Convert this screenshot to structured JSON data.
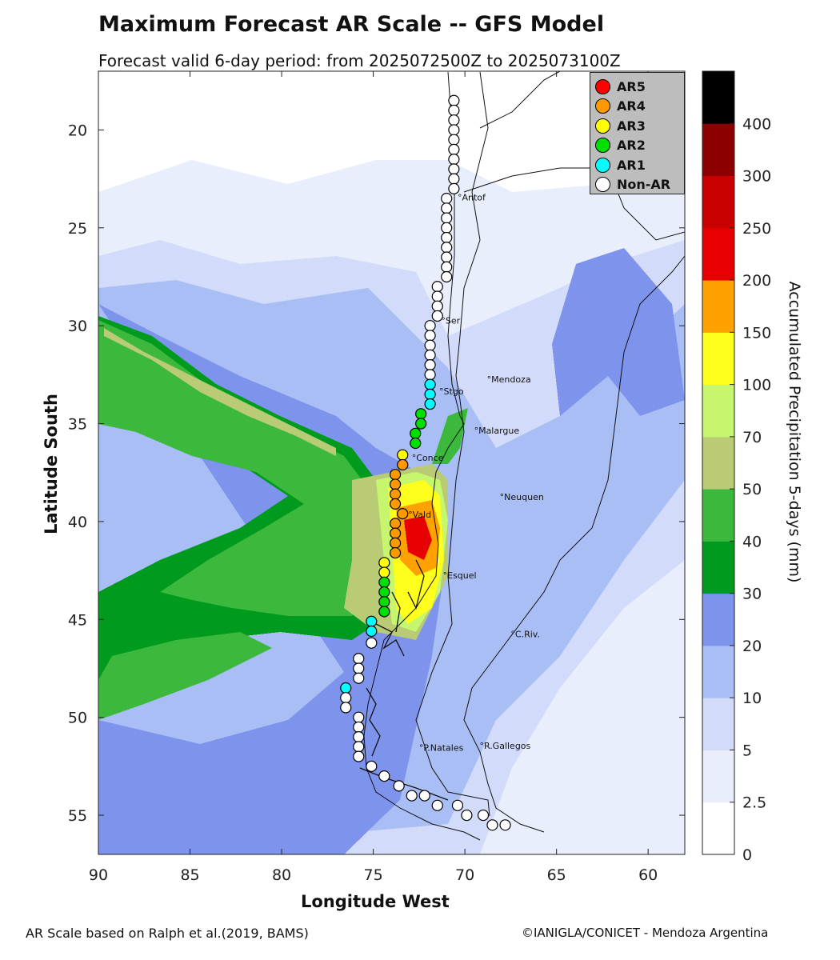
{
  "title": "Maximum Forecast AR Scale -- GFS Model",
  "subtitle": "Forecast valid 6-day period: from 2025072500Z to 2025073100Z",
  "x_axis_label": "Longitude West",
  "y_axis_label": "Latitude South",
  "colorbar_label": "Accumulated Precipitation 5-days (mm)",
  "footer_left": "AR Scale based on Ralph et al.(2019, BAMS)",
  "footer_right": "©IANIGLA/CONICET - Mendoza Argentina",
  "legend": [
    {
      "label": "AR5",
      "color": "#ff0000"
    },
    {
      "label": "AR4",
      "color": "#ff9900"
    },
    {
      "label": "AR3",
      "color": "#ffff00"
    },
    {
      "label": "AR2",
      "color": "#00e000"
    },
    {
      "label": "AR1",
      "color": "#00ffff"
    },
    {
      "label": "Non-AR",
      "color": "#ffffff"
    }
  ],
  "cities": [
    {
      "name": "Antof",
      "lon": 70.4,
      "lat": 23.6
    },
    {
      "name": "Ser",
      "lon": 71.3,
      "lat": 29.9
    },
    {
      "name": "Mendoza",
      "lon": 68.8,
      "lat": 32.9
    },
    {
      "name": "Stgo",
      "lon": 71.4,
      "lat": 33.5
    },
    {
      "name": "Malargue",
      "lon": 69.5,
      "lat": 35.5
    },
    {
      "name": "Conce",
      "lon": 72.9,
      "lat": 36.9
    },
    {
      "name": "Neuquen",
      "lon": 68.1,
      "lat": 38.9
    },
    {
      "name": "Vald",
      "lon": 73.1,
      "lat": 39.8
    },
    {
      "name": "Esquel",
      "lon": 71.2,
      "lat": 42.9
    },
    {
      "name": "C.Riv.",
      "lon": 67.5,
      "lat": 45.9
    },
    {
      "name": "P.Natales",
      "lon": 72.5,
      "lat": 51.7
    },
    {
      "name": "R.Gallegos",
      "lon": 69.2,
      "lat": 51.6
    }
  ],
  "chart_data": {
    "type": "heatmap",
    "title": "Maximum Forecast AR Scale -- GFS Model",
    "xlabel": "Longitude West",
    "ylabel": "Latitude South",
    "xlim": [
      90,
      58
    ],
    "ylim": [
      17,
      57
    ],
    "x_ticks": [
      90,
      85,
      80,
      75,
      70,
      65,
      60
    ],
    "y_ticks": [
      20,
      25,
      30,
      35,
      40,
      45,
      50,
      55
    ],
    "colorbar": {
      "label": "Accumulated Precipitation 5-days (mm)",
      "tick_labels": [
        "0",
        "2.5",
        "5",
        "10",
        "20",
        "30",
        "40",
        "50",
        "70",
        "100",
        "150",
        "200",
        "250",
        "300",
        "400"
      ],
      "colors": [
        "#ffffff",
        "#e8eefc",
        "#d2dcfa",
        "#a9bef5",
        "#7d93ec",
        "#009a1f",
        "#3cb93c",
        "#b9cc75",
        "#c6f66e",
        "#ffff1e",
        "#ffa200",
        "#e60000",
        "#c80000",
        "#8c0000",
        "#000000"
      ]
    },
    "ar_points": [
      {
        "lon": 70.6,
        "lat": 18.5,
        "category": "Non-AR"
      },
      {
        "lon": 70.6,
        "lat": 19.0,
        "category": "Non-AR"
      },
      {
        "lon": 70.6,
        "lat": 19.5,
        "category": "Non-AR"
      },
      {
        "lon": 70.6,
        "lat": 20.0,
        "category": "Non-AR"
      },
      {
        "lon": 70.6,
        "lat": 20.5,
        "category": "Non-AR"
      },
      {
        "lon": 70.6,
        "lat": 21.0,
        "category": "Non-AR"
      },
      {
        "lon": 70.6,
        "lat": 21.5,
        "category": "Non-AR"
      },
      {
        "lon": 70.6,
        "lat": 22.0,
        "category": "Non-AR"
      },
      {
        "lon": 70.6,
        "lat": 22.5,
        "category": "Non-AR"
      },
      {
        "lon": 70.6,
        "lat": 23.0,
        "category": "Non-AR"
      },
      {
        "lon": 71.0,
        "lat": 23.5,
        "category": "Non-AR"
      },
      {
        "lon": 71.0,
        "lat": 24.0,
        "category": "Non-AR"
      },
      {
        "lon": 71.0,
        "lat": 24.5,
        "category": "Non-AR"
      },
      {
        "lon": 71.0,
        "lat": 25.0,
        "category": "Non-AR"
      },
      {
        "lon": 71.0,
        "lat": 25.5,
        "category": "Non-AR"
      },
      {
        "lon": 71.0,
        "lat": 26.0,
        "category": "Non-AR"
      },
      {
        "lon": 71.0,
        "lat": 26.5,
        "category": "Non-AR"
      },
      {
        "lon": 71.0,
        "lat": 27.0,
        "category": "Non-AR"
      },
      {
        "lon": 71.0,
        "lat": 27.5,
        "category": "Non-AR"
      },
      {
        "lon": 71.5,
        "lat": 28.0,
        "category": "Non-AR"
      },
      {
        "lon": 71.5,
        "lat": 28.5,
        "category": "Non-AR"
      },
      {
        "lon": 71.5,
        "lat": 29.0,
        "category": "Non-AR"
      },
      {
        "lon": 71.5,
        "lat": 29.5,
        "category": "Non-AR"
      },
      {
        "lon": 71.9,
        "lat": 30.0,
        "category": "Non-AR"
      },
      {
        "lon": 71.9,
        "lat": 30.5,
        "category": "Non-AR"
      },
      {
        "lon": 71.9,
        "lat": 31.0,
        "category": "Non-AR"
      },
      {
        "lon": 71.9,
        "lat": 31.5,
        "category": "Non-AR"
      },
      {
        "lon": 71.9,
        "lat": 32.0,
        "category": "Non-AR"
      },
      {
        "lon": 71.9,
        "lat": 32.5,
        "category": "Non-AR"
      },
      {
        "lon": 71.9,
        "lat": 33.0,
        "category": "AR1"
      },
      {
        "lon": 71.9,
        "lat": 33.5,
        "category": "AR1"
      },
      {
        "lon": 71.9,
        "lat": 34.0,
        "category": "AR1"
      },
      {
        "lon": 72.4,
        "lat": 34.5,
        "category": "AR2"
      },
      {
        "lon": 72.4,
        "lat": 35.0,
        "category": "AR2"
      },
      {
        "lon": 72.7,
        "lat": 35.5,
        "category": "AR2"
      },
      {
        "lon": 72.7,
        "lat": 36.0,
        "category": "AR2"
      },
      {
        "lon": 73.4,
        "lat": 36.6,
        "category": "AR3"
      },
      {
        "lon": 73.4,
        "lat": 37.1,
        "category": "AR4"
      },
      {
        "lon": 73.8,
        "lat": 37.6,
        "category": "AR4"
      },
      {
        "lon": 73.8,
        "lat": 38.1,
        "category": "AR4"
      },
      {
        "lon": 73.8,
        "lat": 38.6,
        "category": "AR4"
      },
      {
        "lon": 73.8,
        "lat": 39.1,
        "category": "AR4"
      },
      {
        "lon": 73.4,
        "lat": 39.6,
        "category": "AR4"
      },
      {
        "lon": 73.8,
        "lat": 40.1,
        "category": "AR4"
      },
      {
        "lon": 73.8,
        "lat": 40.6,
        "category": "AR4"
      },
      {
        "lon": 73.8,
        "lat": 41.1,
        "category": "AR4"
      },
      {
        "lon": 73.8,
        "lat": 41.6,
        "category": "AR4"
      },
      {
        "lon": 74.4,
        "lat": 42.1,
        "category": "AR3"
      },
      {
        "lon": 74.4,
        "lat": 42.6,
        "category": "AR3"
      },
      {
        "lon": 74.4,
        "lat": 43.1,
        "category": "AR2"
      },
      {
        "lon": 74.4,
        "lat": 43.6,
        "category": "AR2"
      },
      {
        "lon": 74.4,
        "lat": 44.1,
        "category": "AR2"
      },
      {
        "lon": 74.4,
        "lat": 44.6,
        "category": "AR2"
      },
      {
        "lon": 75.1,
        "lat": 45.1,
        "category": "AR1"
      },
      {
        "lon": 75.1,
        "lat": 45.6,
        "category": "AR1"
      },
      {
        "lon": 75.1,
        "lat": 46.2,
        "category": "Non-AR"
      },
      {
        "lon": 75.8,
        "lat": 47.0,
        "category": "Non-AR"
      },
      {
        "lon": 75.8,
        "lat": 47.5,
        "category": "Non-AR"
      },
      {
        "lon": 75.8,
        "lat": 48.0,
        "category": "Non-AR"
      },
      {
        "lon": 76.5,
        "lat": 48.5,
        "category": "AR1"
      },
      {
        "lon": 76.5,
        "lat": 49.0,
        "category": "Non-AR"
      },
      {
        "lon": 76.5,
        "lat": 49.5,
        "category": "Non-AR"
      },
      {
        "lon": 75.8,
        "lat": 50.0,
        "category": "Non-AR"
      },
      {
        "lon": 75.8,
        "lat": 50.5,
        "category": "Non-AR"
      },
      {
        "lon": 75.8,
        "lat": 51.0,
        "category": "Non-AR"
      },
      {
        "lon": 75.8,
        "lat": 51.5,
        "category": "Non-AR"
      },
      {
        "lon": 75.8,
        "lat": 52.0,
        "category": "Non-AR"
      },
      {
        "lon": 75.1,
        "lat": 52.5,
        "category": "Non-AR"
      },
      {
        "lon": 74.4,
        "lat": 53.0,
        "category": "Non-AR"
      },
      {
        "lon": 73.6,
        "lat": 53.5,
        "category": "Non-AR"
      },
      {
        "lon": 72.9,
        "lat": 54.0,
        "category": "Non-AR"
      },
      {
        "lon": 72.2,
        "lat": 54.0,
        "category": "Non-AR"
      },
      {
        "lon": 71.5,
        "lat": 54.5,
        "category": "Non-AR"
      },
      {
        "lon": 70.4,
        "lat": 54.5,
        "category": "Non-AR"
      },
      {
        "lon": 69.9,
        "lat": 55.0,
        "category": "Non-AR"
      },
      {
        "lon": 69.0,
        "lat": 55.0,
        "category": "Non-AR"
      },
      {
        "lon": 68.5,
        "lat": 55.5,
        "category": "Non-AR"
      },
      {
        "lon": 67.8,
        "lat": 55.5,
        "category": "Non-AR"
      }
    ]
  }
}
